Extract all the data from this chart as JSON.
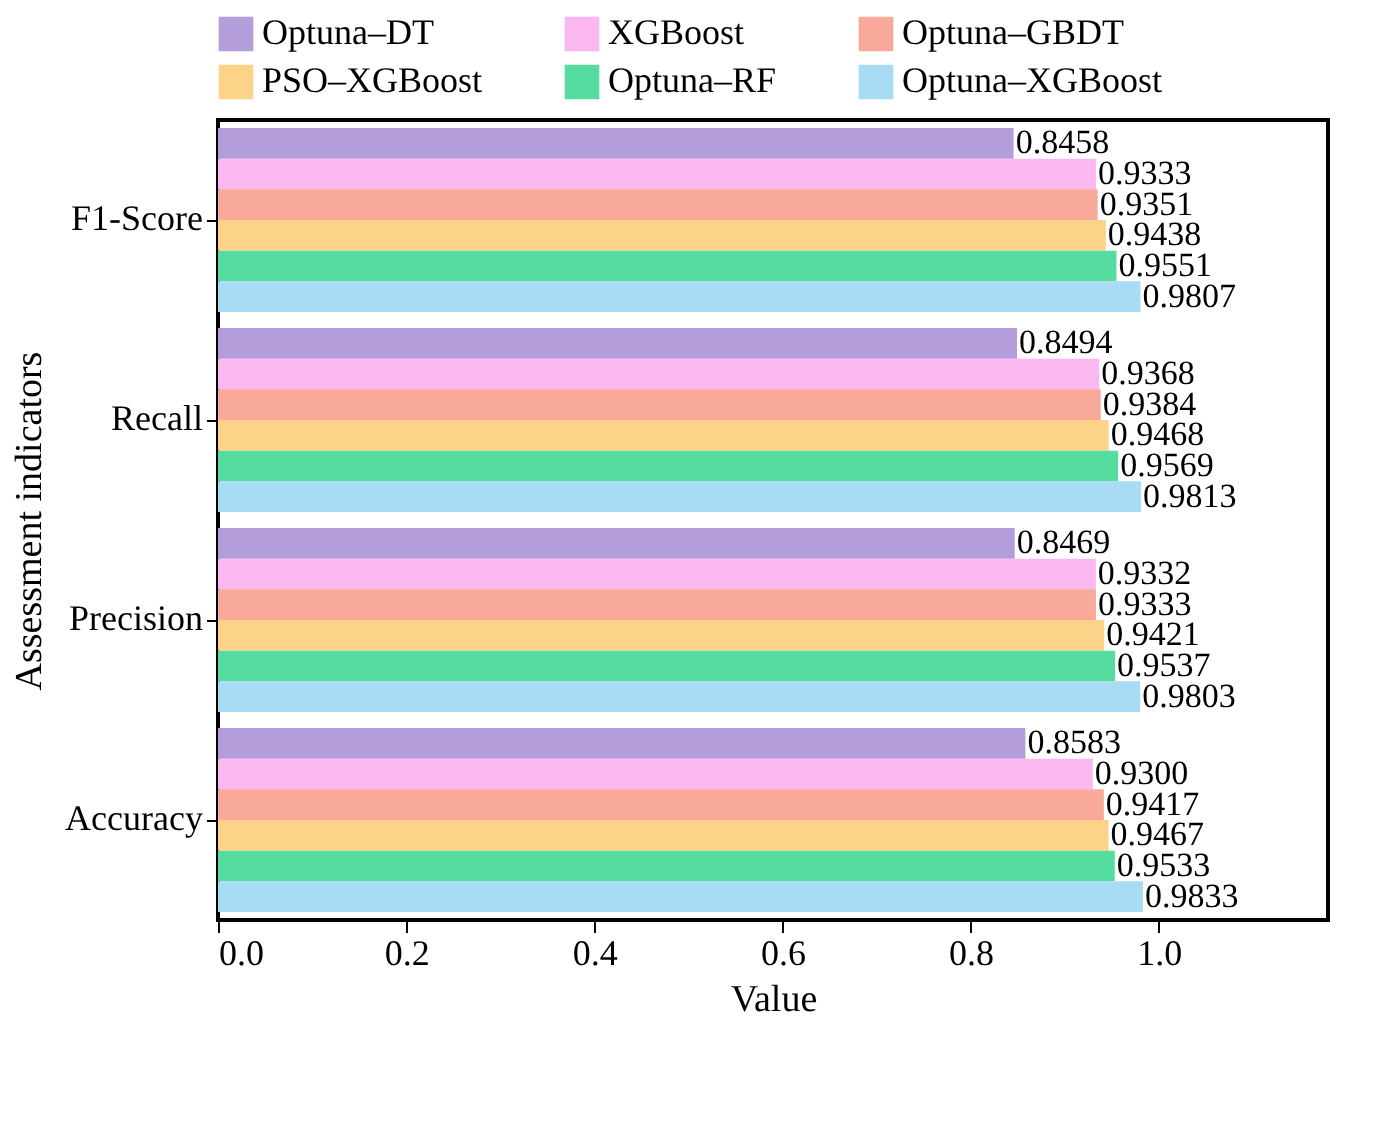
{
  "chart_data": {
    "type": "bar",
    "orientation": "horizontal",
    "xlabel": "Value",
    "ylabel": "Assessment indicators",
    "categories": [
      "F1-Score",
      "Recall",
      "Precision",
      "Accuracy"
    ],
    "series": [
      {
        "name": "Optuna–DT",
        "color": "#b39ddb",
        "values": [
          0.8458,
          0.8494,
          0.8469,
          0.8583
        ],
        "value_labels": [
          "0.8458",
          "0.8494",
          "0.8469",
          "0.8583"
        ]
      },
      {
        "name": "XGBoost",
        "color": "#fbb7f0",
        "values": [
          0.9333,
          0.9368,
          0.9332,
          0.93
        ],
        "value_labels": [
          "0.9333",
          "0.9368",
          "0.9332",
          "0.9300"
        ]
      },
      {
        "name": "Optuna–GBDT",
        "color": "#f9a99a",
        "values": [
          0.9351,
          0.9384,
          0.9333,
          0.9417
        ],
        "value_labels": [
          "0.9351",
          "0.9384",
          "0.9333",
          "0.9417"
        ]
      },
      {
        "name": "PSO–XGBoost",
        "color": "#fdd38a",
        "values": [
          0.9438,
          0.9468,
          0.9421,
          0.9467
        ],
        "value_labels": [
          "0.9438",
          "0.9468",
          "0.9421",
          "0.9467"
        ]
      },
      {
        "name": "Optuna–RF",
        "color": "#57dca0",
        "values": [
          0.9551,
          0.9569,
          0.9537,
          0.9533
        ],
        "value_labels": [
          "0.9551",
          "0.9569",
          "0.9537",
          "0.9533"
        ]
      },
      {
        "name": "Optuna–XGBoost",
        "color": "#a8dcf5",
        "values": [
          0.9807,
          0.9813,
          0.9803,
          0.9833
        ],
        "value_labels": [
          "0.9807",
          "0.9813",
          "0.9803",
          "0.9833"
        ]
      }
    ],
    "xlim": [
      0,
      1.18
    ],
    "xticks": [
      {
        "value": 0,
        "label": "0.0"
      },
      {
        "value": 0.2,
        "label": "0.2"
      },
      {
        "value": 0.4,
        "label": "0.4"
      },
      {
        "value": 0.6,
        "label": "0.6"
      },
      {
        "value": 0.8,
        "label": "0.8"
      },
      {
        "value": 1,
        "label": "1.0"
      }
    ],
    "legend": "top",
    "grid": false
  }
}
